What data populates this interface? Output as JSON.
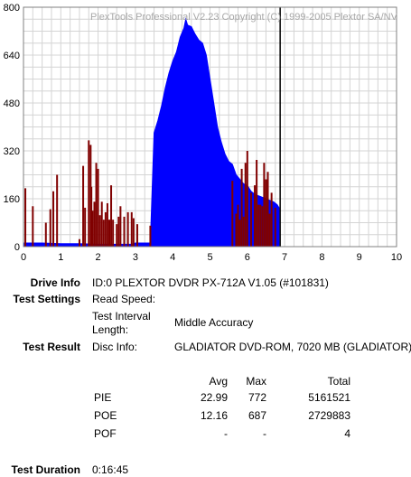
{
  "chart_data": {
    "type": "area",
    "title": "PlexTools Professional V2.23 Copyright (C) 1999-2005 Plextor SA/NV",
    "xlim": [
      0,
      10
    ],
    "ylim": [
      0,
      800
    ],
    "x_ticks": [
      "0",
      "1",
      "2",
      "3",
      "4",
      "5",
      "6",
      "7",
      "8",
      "9",
      "10"
    ],
    "y_ticks": [
      "0",
      "160",
      "320",
      "480",
      "640",
      "800"
    ],
    "grid": true,
    "colors": {
      "pif": "#800000",
      "pie": "#0000ff",
      "marker": "#000000"
    },
    "marker_x": 6.88,
    "series": [
      {
        "key": "pif",
        "x": [
          0.05,
          0.25,
          0.6,
          0.72,
          0.8,
          0.9,
          1.5,
          1.6,
          1.65,
          1.75,
          1.8,
          1.82,
          1.85,
          1.9,
          1.95,
          2.0,
          2.05,
          2.1,
          2.15,
          2.2,
          2.25,
          2.3,
          2.35,
          2.4,
          2.5,
          2.55,
          2.6,
          2.7,
          2.8,
          2.9,
          2.95,
          3.05,
          3.4,
          5.6,
          5.7,
          5.75,
          5.8,
          5.85,
          5.9,
          5.95,
          6.0,
          6.1,
          6.2,
          6.25,
          6.3,
          6.35,
          6.4,
          6.45,
          6.5,
          6.55,
          6.6,
          6.65,
          6.75
        ],
        "values": [
          195,
          135,
          80,
          125,
          185,
          240,
          25,
          270,
          130,
          355,
          340,
          200,
          120,
          150,
          280,
          260,
          105,
          150,
          90,
          115,
          145,
          90,
          205,
          90,
          75,
          100,
          135,
          100,
          115,
          115,
          95,
          75,
          70,
          220,
          110,
          140,
          90,
          260,
          100,
          280,
          320,
          180,
          205,
          290,
          140,
          140,
          135,
          280,
          225,
          250,
          110,
          180,
          130
        ]
      },
      {
        "key": "pie",
        "x": [
          0.0,
          0.5,
          1.0,
          1.5,
          2.0,
          2.5,
          2.9,
          3.0,
          3.4,
          3.5,
          3.6,
          3.7,
          3.8,
          3.9,
          4.0,
          4.1,
          4.2,
          4.3,
          4.35,
          4.4,
          4.5,
          4.6,
          4.7,
          4.8,
          4.9,
          5.0,
          5.1,
          5.2,
          5.3,
          5.4,
          5.5,
          5.6,
          5.7,
          5.8,
          5.9,
          6.0,
          6.1,
          6.2,
          6.3,
          6.4,
          6.5,
          6.6,
          6.7,
          6.8,
          6.85
        ],
        "values": [
          12,
          12,
          10,
          10,
          8,
          8,
          8,
          12,
          12,
          380,
          420,
          470,
          530,
          580,
          620,
          650,
          700,
          730,
          760,
          740,
          735,
          710,
          690,
          680,
          640,
          560,
          480,
          400,
          350,
          310,
          285,
          275,
          240,
          225,
          210,
          205,
          185,
          175,
          170,
          165,
          160,
          155,
          150,
          140,
          130
        ]
      }
    ]
  },
  "info": {
    "drive_info_label": "Drive Info",
    "drive_info_value": "ID:0 PLEXTOR DVDR PX-712A V1.05 (#101831)",
    "test_settings_label": "Test Settings",
    "read_speed_label": "Read Speed:",
    "interval_label_1": "Test Interval",
    "interval_label_2": "Length:",
    "interval_value": "Middle Accuracy",
    "test_result_label": "Test Result",
    "disc_info_label": "Disc Info:",
    "disc_info_value": "GLADIATOR DVD-ROM, 7020 MB (GLADIATOR)",
    "table_headers": [
      "Avg",
      "Max",
      "Total"
    ],
    "rows": [
      {
        "name": "PIE",
        "avg": "22.99",
        "max": "772",
        "total": "5161521"
      },
      {
        "name": "POE",
        "avg": "12.16",
        "max": "687",
        "total": "2729883"
      },
      {
        "name": "POF",
        "avg": "-",
        "max": "-",
        "total": "4"
      }
    ],
    "test_duration_label": "Test Duration",
    "test_duration_value": "0:16:45"
  }
}
